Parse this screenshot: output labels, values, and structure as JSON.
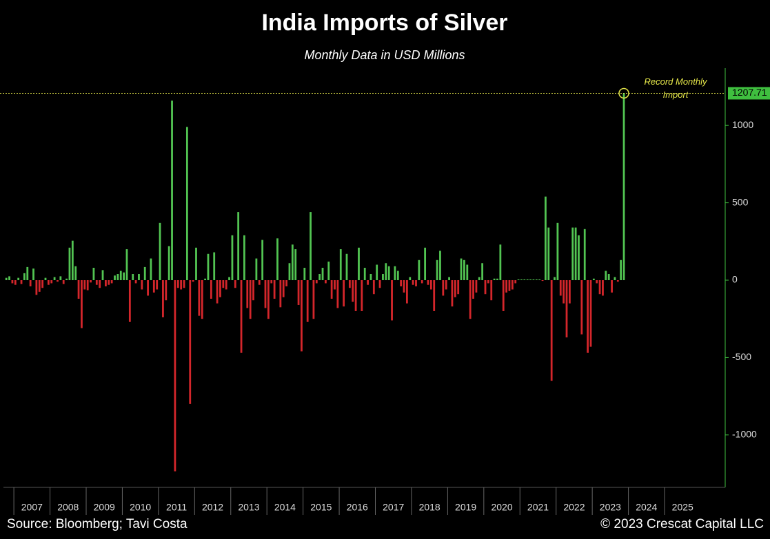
{
  "chart_data": {
    "type": "bar",
    "title": "India Imports of Silver",
    "subtitle": "Monthly Data in USD Millions",
    "annotation": "Record Monthly Import",
    "source": "Source: Bloomberg; Tavi Costa",
    "copyright": "© 2023 Crescat Capital LLC",
    "categories": [
      null,
      null,
      null,
      "2007",
      null,
      null,
      null,
      null,
      null,
      null,
      null,
      null,
      null,
      null,
      null,
      "2008",
      null,
      null,
      null,
      null,
      null,
      null,
      null,
      null,
      null,
      null,
      null,
      "2009",
      null,
      null,
      null,
      null,
      null,
      null,
      null,
      null,
      null,
      null,
      null,
      "2010",
      null,
      null,
      null,
      null,
      null,
      null,
      null,
      null,
      null,
      null,
      null,
      "2011",
      null,
      null,
      null,
      null,
      null,
      null,
      null,
      null,
      null,
      null,
      null,
      "2012",
      null,
      null,
      null,
      null,
      null,
      null,
      null,
      null,
      null,
      null,
      null,
      "2013",
      null,
      null,
      null,
      null,
      null,
      null,
      null,
      null,
      null,
      null,
      null,
      "2014",
      null,
      null,
      null,
      null,
      null,
      null,
      null,
      null,
      null,
      null,
      null,
      "2015",
      null,
      null,
      null,
      null,
      null,
      null,
      null,
      null,
      null,
      null,
      null,
      "2016",
      null,
      null,
      null,
      null,
      null,
      null,
      null,
      null,
      null,
      null,
      null,
      "2017",
      null,
      null,
      null,
      null,
      null,
      null,
      null,
      null,
      null,
      null,
      null,
      "2018",
      null,
      null,
      null,
      null,
      null,
      null,
      null,
      null,
      null,
      null,
      null,
      "2019",
      null,
      null,
      null,
      null,
      null,
      null,
      null,
      null,
      null,
      null,
      null,
      "2020",
      null,
      null,
      null,
      null,
      null,
      null,
      null,
      null,
      null,
      null,
      null,
      "2021",
      null,
      null,
      null,
      null,
      null,
      null,
      null,
      null,
      null,
      null,
      null,
      "2022",
      null,
      null,
      null,
      null,
      null,
      null,
      null,
      null,
      null,
      null,
      null,
      "2023",
      null,
      null,
      null,
      null,
      null,
      null,
      null,
      null,
      null,
      null,
      null,
      "2024",
      null,
      null,
      null,
      null,
      null,
      null,
      null,
      null,
      null,
      null,
      null,
      "2025",
      null,
      null,
      null,
      null,
      null,
      null,
      null,
      null,
      null,
      null,
      null
    ],
    "values": [
      15,
      25,
      -20,
      -30,
      15,
      -25,
      45,
      85,
      -40,
      75,
      -95,
      -75,
      -50,
      15,
      -30,
      -20,
      20,
      -10,
      25,
      -25,
      10,
      210,
      255,
      90,
      -120,
      -310,
      -60,
      -65,
      -15,
      80,
      -30,
      -50,
      65,
      -40,
      -30,
      -20,
      30,
      40,
      60,
      50,
      200,
      -270,
      40,
      -20,
      40,
      -60,
      85,
      -100,
      140,
      -80,
      -60,
      370,
      -240,
      -130,
      220,
      1160,
      -1235,
      -50,
      -60,
      -50,
      990,
      -800,
      -10,
      210,
      -230,
      -250,
      10,
      170,
      -120,
      180,
      -150,
      -110,
      -50,
      -60,
      20,
      290,
      -50,
      440,
      -470,
      290,
      -180,
      -250,
      -130,
      140,
      -30,
      260,
      -180,
      -250,
      -20,
      -120,
      270,
      -175,
      -110,
      -40,
      110,
      230,
      200,
      -160,
      -460,
      80,
      -270,
      440,
      -250,
      -20,
      40,
      80,
      -20,
      120,
      -120,
      -60,
      -180,
      200,
      -170,
      170,
      -50,
      -140,
      -200,
      210,
      -200,
      80,
      -30,
      40,
      -90,
      100,
      -50,
      40,
      110,
      90,
      -260,
      90,
      60,
      -40,
      -80,
      -150,
      20,
      -30,
      -40,
      130,
      -20,
      210,
      -30,
      -60,
      -200,
      130,
      190,
      -100,
      -60,
      20,
      -170,
      -110,
      -90,
      140,
      130,
      100,
      -250,
      -120,
      -80,
      20,
      110,
      -90,
      -20,
      -130,
      10,
      10,
      230,
      -200,
      -80,
      -70,
      -60,
      -20,
      5,
      5,
      5,
      5,
      5,
      5,
      5,
      5,
      -5,
      540,
      340,
      -650,
      20,
      370,
      -100,
      -150,
      -370,
      -150,
      340,
      340,
      290,
      -350,
      330,
      -470,
      -430,
      10,
      -20,
      -90,
      -100,
      60,
      40,
      -80,
      20,
      -10,
      130,
      1207.71,
      null,
      null,
      null,
      null,
      null,
      null,
      null,
      null,
      null,
      null,
      null,
      null,
      null,
      null,
      null,
      null,
      null,
      null,
      null,
      null,
      null,
      null,
      null,
      null,
      null
    ],
    "colors": {
      "positive": "#52c452",
      "negative": "#d4262b"
    },
    "ylim": [
      -1330,
      1370
    ],
    "yticks": [
      -1000,
      -500,
      0,
      500,
      1000
    ]
  }
}
